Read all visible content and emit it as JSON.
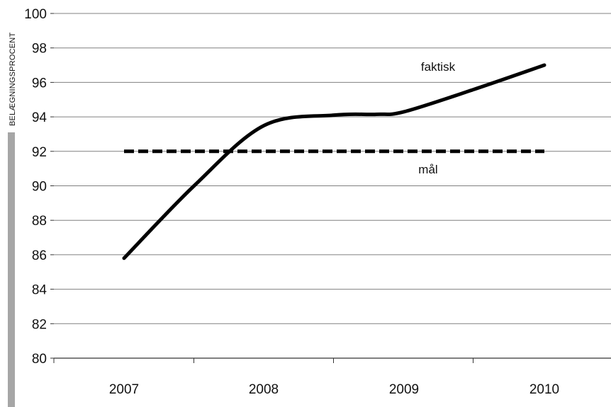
{
  "chart_data": {
    "type": "line",
    "title": "",
    "xlabel": "",
    "ylabel": "BELÆGNINGSPROCENT",
    "categories": [
      "2007",
      "2008",
      "2009",
      "2010"
    ],
    "ylim": [
      80,
      100
    ],
    "yticks": [
      80,
      82,
      84,
      86,
      88,
      90,
      92,
      94,
      96,
      98,
      100
    ],
    "grid": true,
    "series": [
      {
        "name": "faktisk",
        "style": "solid",
        "color": "#000000",
        "x": [
          "2007",
          "2007.5",
          "2008",
          "2008.5",
          "2008.8",
          "2009",
          "2009.5",
          "2010"
        ],
        "values": [
          85.8,
          90.0,
          93.5,
          94.1,
          94.15,
          94.3,
          95.6,
          97.0
        ]
      },
      {
        "name": "mål",
        "style": "dashed",
        "color": "#000000",
        "x": [
          "2007",
          "2010"
        ],
        "values": [
          92,
          92
        ]
      }
    ],
    "colors": {
      "grid": "#808080",
      "axis_bar": "#a6a6a6",
      "line": "#000000"
    }
  }
}
